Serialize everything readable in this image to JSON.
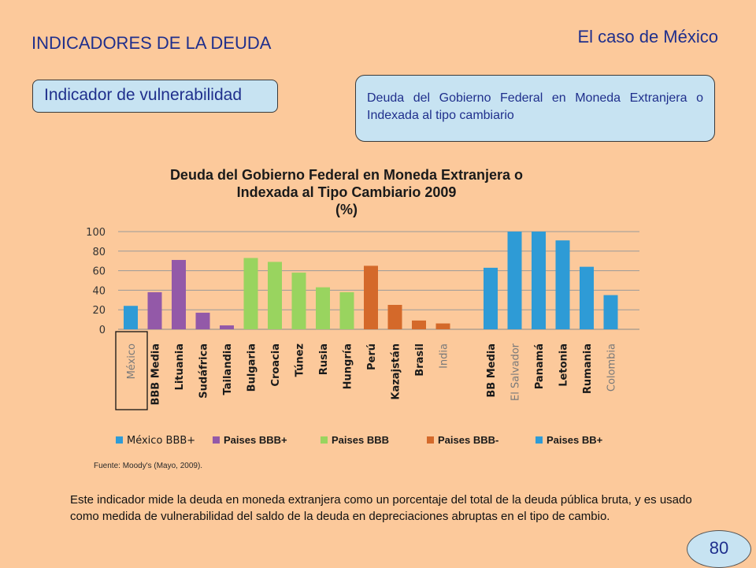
{
  "header": {
    "title": "INDICADORES DE LA DEUDA",
    "subtitle": "El caso de México"
  },
  "indicator_label": "Indicador de vulnerabilidad",
  "description": "Deuda del Gobierno Federal en Moneda Extranjera o Indexada al tipo cambiario",
  "chart_data": {
    "type": "bar",
    "title": "Deuda del Gobierno Federal en Moneda Extranjera o Indexada al Tipo Cambiario 2009",
    "title_lines": [
      "Deuda del Gobierno Federal en Moneda Extranjera o",
      "Indexada al Tipo Cambiario 2009",
      "(%)"
    ],
    "ylim": [
      0,
      100
    ],
    "yticks": [
      "100",
      "80",
      "60",
      "40",
      "20",
      "0"
    ],
    "grid": true,
    "legend_position": "bottom",
    "groups": [
      {
        "name": "México BBB+",
        "color": "#2e9bd6"
      },
      {
        "name": "Paises BBB+",
        "color": "#9359a8"
      },
      {
        "name": "Paises BBB",
        "color": "#99d45f"
      },
      {
        "name": "Paises BBB-",
        "color": "#d4692a"
      },
      {
        "name": "Paises BB+",
        "color": "#2e9bd6"
      }
    ],
    "categories": [
      "México",
      "BBB Media",
      "Lituania",
      "Sudáfrica",
      "Tailandia",
      "Bulgaria",
      "Croacia",
      "Túnez",
      "Rusia",
      "Hungría",
      "Perú",
      "Kazajstán",
      "Brasil",
      "India",
      "BB Media",
      "El Salvador",
      "Panamá",
      "Letonia",
      "Rumania",
      "Colombia"
    ],
    "values": [
      24,
      38,
      71,
      17,
      4,
      73,
      69,
      58,
      43,
      38,
      65,
      25,
      9,
      6,
      63,
      100,
      100,
      91,
      64,
      35
    ],
    "group_index": [
      0,
      1,
      1,
      1,
      1,
      2,
      2,
      2,
      2,
      2,
      3,
      3,
      3,
      3,
      4,
      4,
      4,
      4,
      4,
      4
    ],
    "bold_labels": [
      false,
      true,
      true,
      true,
      true,
      true,
      true,
      true,
      true,
      true,
      true,
      true,
      true,
      false,
      true,
      false,
      true,
      true,
      true,
      false
    ],
    "highlighted_category": "México"
  },
  "source": "Fuente: Moody's (Mayo, 2009).",
  "footer_text": "Este indicador mide la deuda en moneda extranjera como un porcentaje del total de la deuda pública bruta, y es usado como medida de vulnerabilidad del saldo de la deuda en depreciaciones abruptas en el tipo de cambio.",
  "page_number": "80"
}
